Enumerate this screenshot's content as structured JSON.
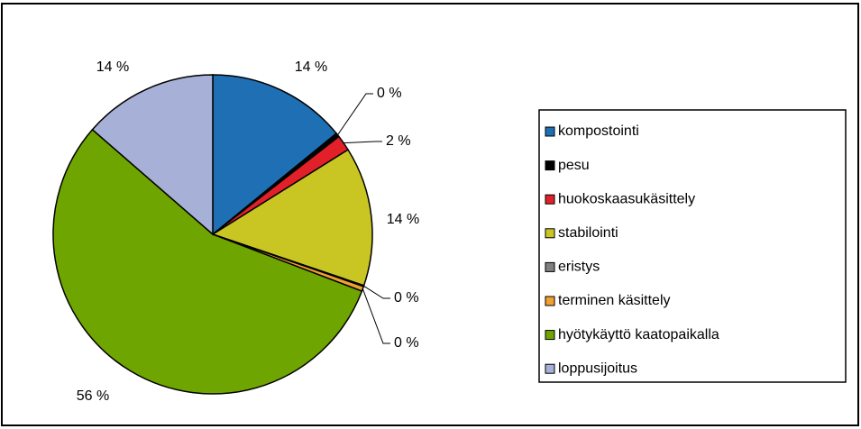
{
  "chart_data": {
    "type": "pie",
    "categories": [
      "kompostointi",
      "pesu",
      "huokoskaasukäsittely",
      "stabilointi",
      "eristys",
      "terminen käsittely",
      "hyötykäyttö kaatopaikalla",
      "loppusijoitus"
    ],
    "values": [
      14.1,
      0.4,
      1.6,
      14.1,
      0.1,
      0.5,
      55.6,
      13.6
    ],
    "value_labels": [
      "14 %",
      "0 %",
      "2 %",
      "14 %",
      "0 %",
      "0 %",
      "56 %",
      "14 %"
    ],
    "colors": [
      "#1f6fb5",
      "#000000",
      "#e2202a",
      "#c9c624",
      "#808080",
      "#f0a030",
      "#6fa500",
      "#a7b0d6"
    ],
    "legend": "right"
  }
}
